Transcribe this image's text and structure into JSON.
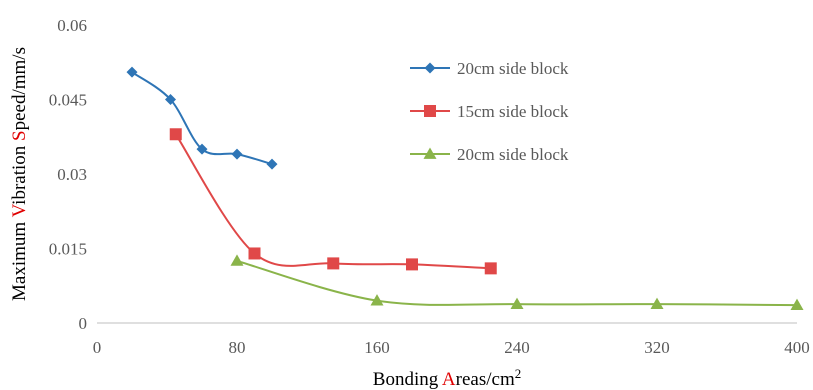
{
  "chart_data": {
    "type": "line",
    "title": "",
    "xlabel": {
      "parts": [
        {
          "text": "Bonding ",
          "style": "normal"
        },
        {
          "text": "A",
          "style": "red"
        },
        {
          "text": "reas/cm",
          "style": "normal"
        },
        {
          "text": "2",
          "style": "sup"
        }
      ]
    },
    "ylabel": {
      "parts": [
        {
          "text": "Maximum ",
          "style": "normal"
        },
        {
          "text": "V",
          "style": "red"
        },
        {
          "text": "ibration ",
          "style": "normal"
        },
        {
          "text": "S",
          "style": "red"
        },
        {
          "text": "peed/mm/s",
          "style": "normal"
        }
      ]
    },
    "xlim": [
      0,
      400
    ],
    "ylim": [
      0,
      0.06
    ],
    "xticks": [
      "0",
      "80",
      "160",
      "240",
      "320",
      "400"
    ],
    "xtick_values": [
      0,
      80,
      160,
      240,
      320,
      400
    ],
    "yticks": [
      "0",
      "0.015",
      "0.03",
      "0.045",
      "0.06"
    ],
    "ytick_values": [
      0,
      0.015,
      0.03,
      0.045,
      0.06
    ],
    "grid": false,
    "legend_position": "top-right",
    "series": [
      {
        "name": "20cm side block",
        "color": "#2e75b6",
        "marker": "diamond",
        "points": [
          [
            20,
            0.0505
          ],
          [
            42,
            0.045
          ],
          [
            60,
            0.035
          ],
          [
            80,
            0.034
          ],
          [
            100,
            0.032
          ]
        ]
      },
      {
        "name": "15cm side block",
        "color": "#e04848",
        "marker": "square",
        "points": [
          [
            45,
            0.038
          ],
          [
            90,
            0.014
          ],
          [
            135,
            0.012
          ],
          [
            180,
            0.0118
          ],
          [
            225,
            0.011
          ]
        ]
      },
      {
        "name": "20cm side block",
        "color": "#8ab44a",
        "marker": "triangle",
        "points": [
          [
            80,
            0.0125
          ],
          [
            160,
            0.0045
          ],
          [
            240,
            0.0038
          ],
          [
            320,
            0.0038
          ],
          [
            400,
            0.0036
          ]
        ]
      }
    ]
  }
}
